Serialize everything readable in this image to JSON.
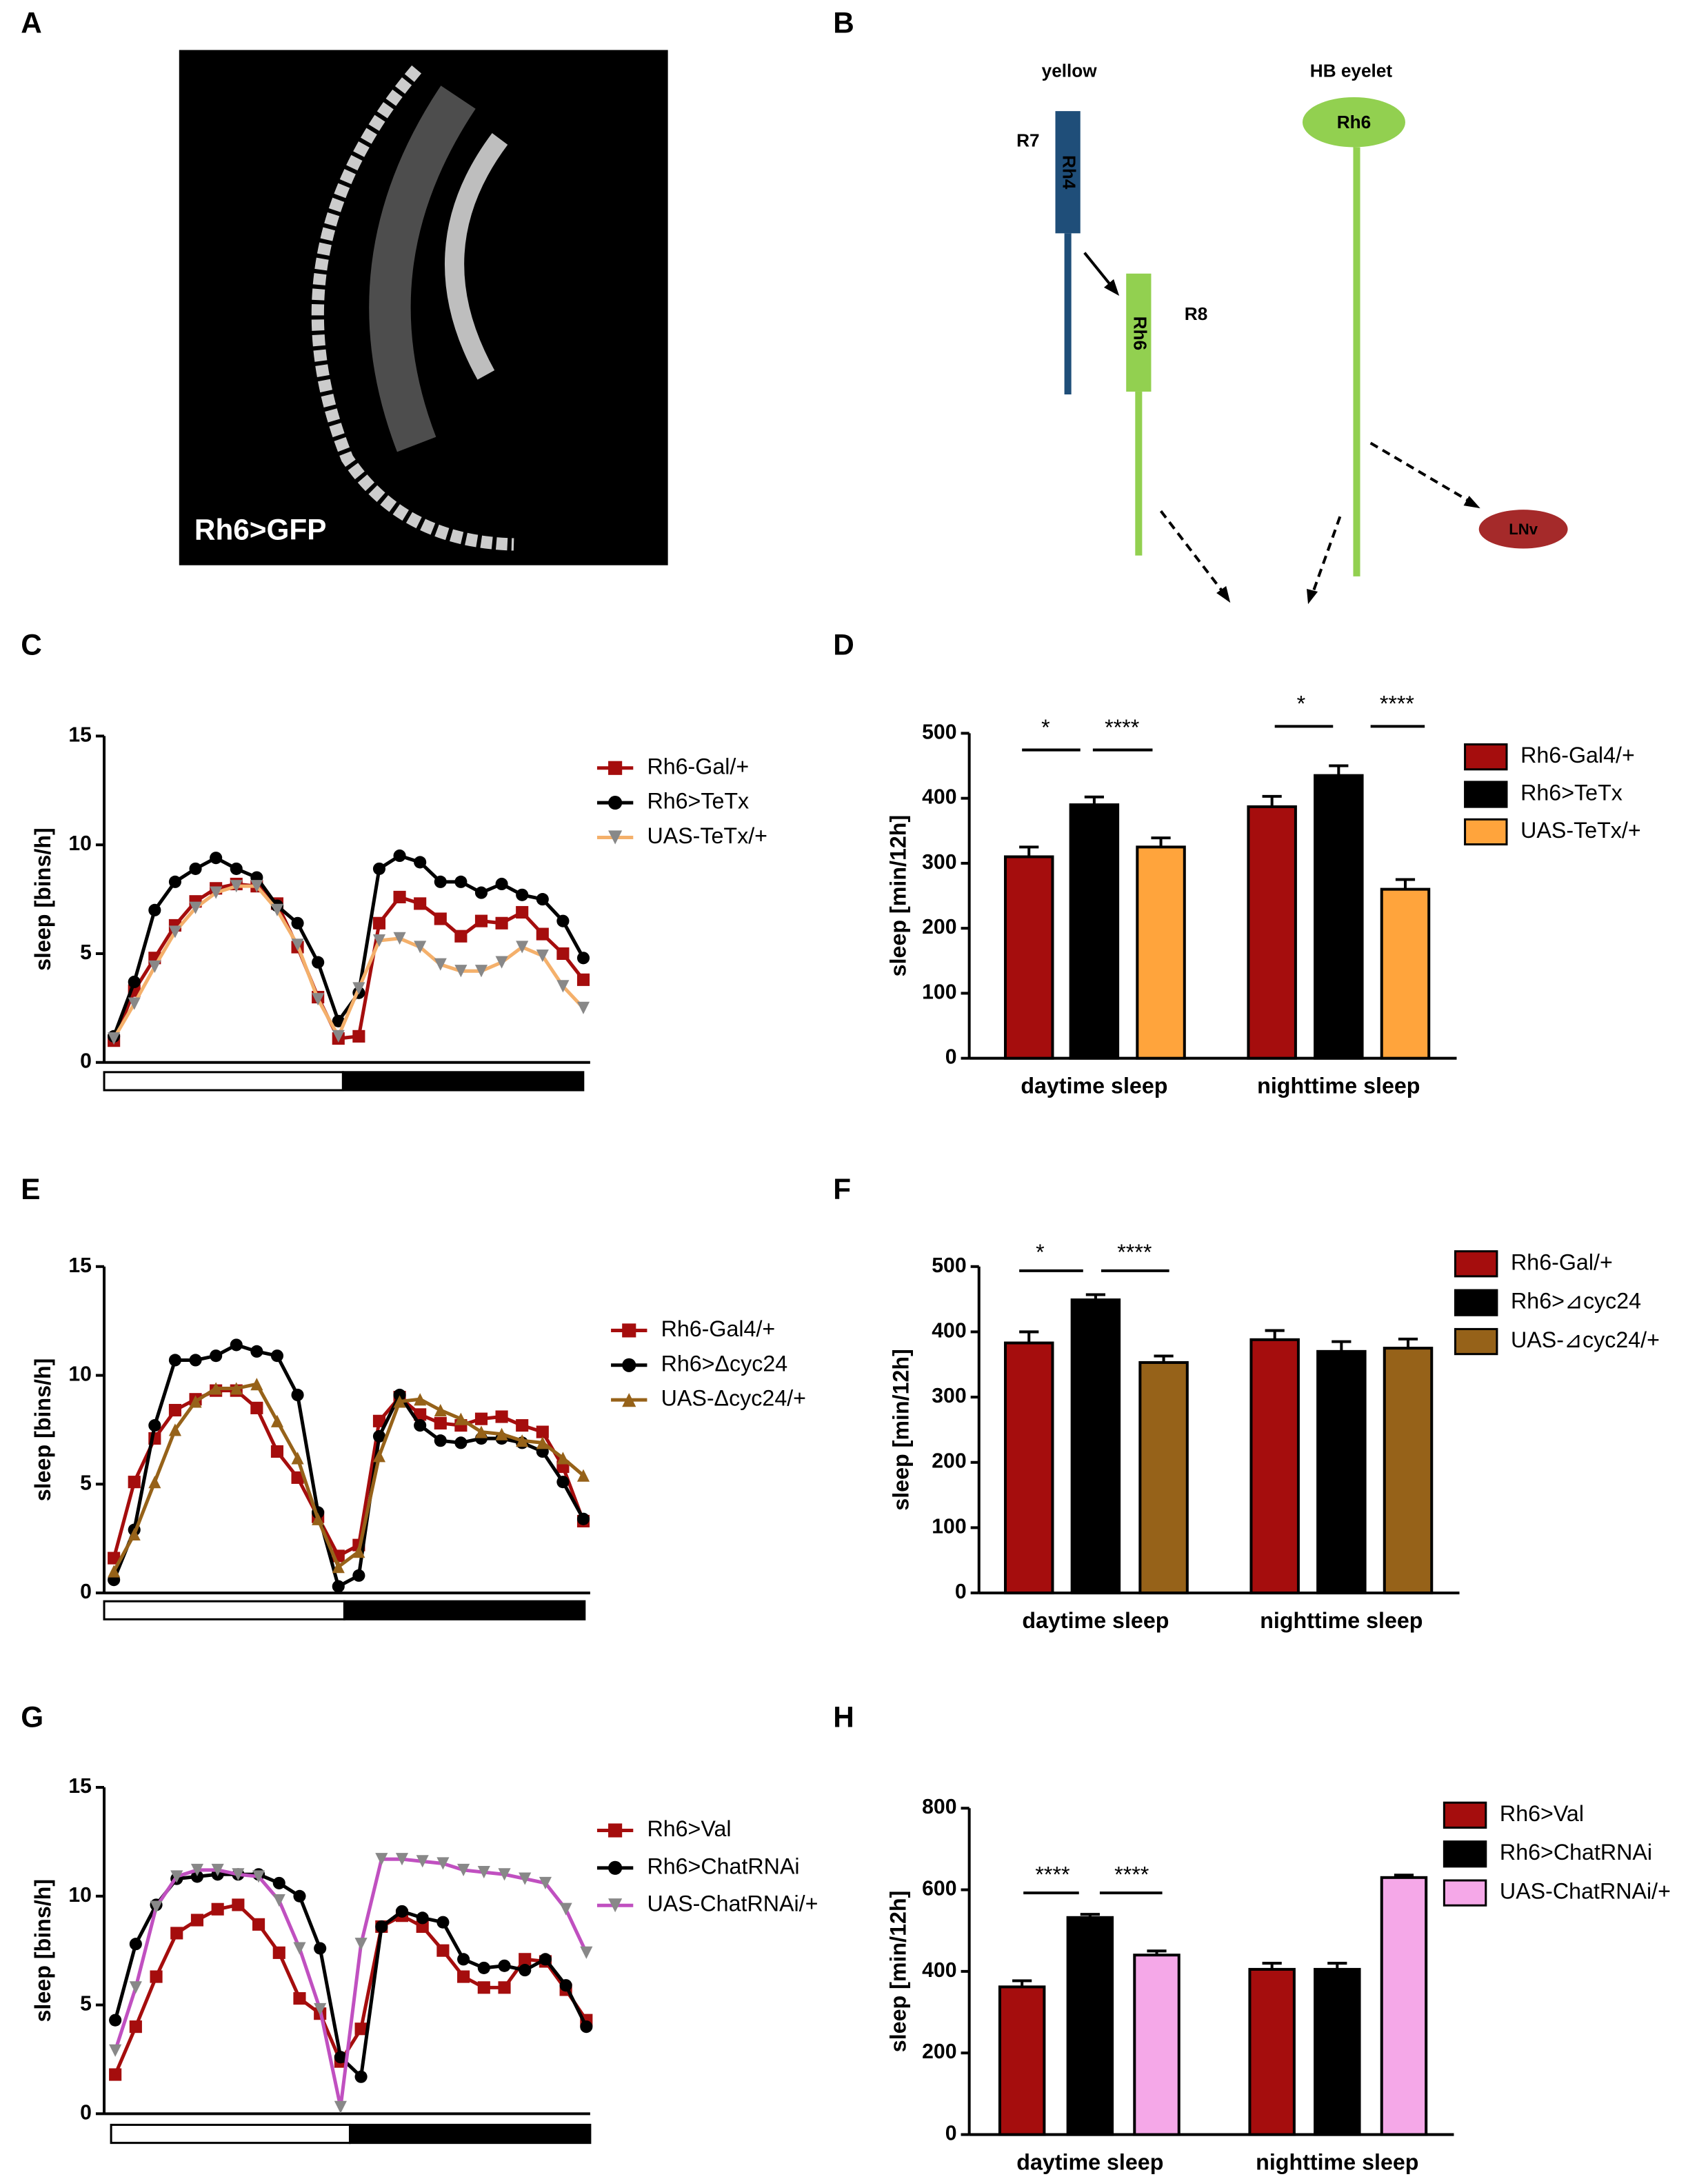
{
  "panel_labels": [
    "A",
    "B",
    "C",
    "D",
    "E",
    "F",
    "G",
    "H"
  ],
  "panel_a": {
    "caption": "Rh6>GFP"
  },
  "panel_b": {
    "columns": [
      "yellow",
      "HB eyelet"
    ],
    "cells": [
      "R7",
      "R8"
    ],
    "rhodopsins": [
      "Rh4",
      "Rh6",
      "Rh6"
    ],
    "target": "LNv"
  },
  "chart_data": [
    {
      "type": "line",
      "ylabel": "sleep [bins/h]",
      "ylim": [
        0,
        15
      ],
      "yticks": [
        0,
        5,
        10,
        15
      ],
      "categories": [
        null,
        null,
        null,
        null,
        null,
        null,
        null,
        null,
        null,
        null,
        null,
        null,
        null,
        null,
        null,
        null,
        null,
        null,
        null,
        null,
        null,
        null,
        null,
        null
      ],
      "series": [
        {
          "name": "Rh6-Gal/+",
          "color": "#a50d0d",
          "marker_color": "#a50d0d",
          "marker": "square",
          "values": [
            1.0,
            3.3,
            4.8,
            6.3,
            7.4,
            8.0,
            8.2,
            8.1,
            7.3,
            5.3,
            3.0,
            1.1,
            1.2,
            6.4,
            7.6,
            7.3,
            6.6,
            5.8,
            6.5,
            6.4,
            6.9,
            5.9,
            5.0,
            3.8
          ]
        },
        {
          "name": "Rh6>TeTx",
          "color": "#000000",
          "marker_color": "#000000",
          "marker": "circle",
          "values": [
            1.2,
            3.7,
            7.0,
            8.3,
            8.9,
            9.4,
            8.9,
            8.5,
            7.2,
            6.4,
            4.6,
            1.9,
            3.2,
            8.9,
            9.5,
            9.2,
            8.3,
            8.3,
            7.8,
            8.2,
            7.7,
            7.5,
            6.5,
            4.8
          ]
        },
        {
          "name": "UAS-TeTx/+",
          "color": "#f4b06b",
          "marker_color": "#888888",
          "marker": "triangle-down",
          "values": [
            1.1,
            2.7,
            4.4,
            6.0,
            7.1,
            7.8,
            8.1,
            8.1,
            7.0,
            5.4,
            2.9,
            1.2,
            3.4,
            5.6,
            5.7,
            5.3,
            4.5,
            4.2,
            4.2,
            4.6,
            5.3,
            4.9,
            3.5,
            2.5
          ]
        }
      ]
    },
    {
      "type": "bar",
      "ylabel": "sleep [min/12h]",
      "ylim": [
        0,
        500
      ],
      "yticks": [
        0,
        100,
        200,
        300,
        400,
        500
      ],
      "categories": [
        "daytime sleep",
        "nighttime sleep"
      ],
      "series": [
        {
          "name": "Rh6-Gal4/+",
          "color": "#a50d0d",
          "values": [
            310,
            387
          ],
          "errors": [
            15,
            16
          ]
        },
        {
          "name": "Rh6>TeTx",
          "color": "#000000",
          "values": [
            390,
            435
          ],
          "errors": [
            12,
            15
          ]
        },
        {
          "name": "UAS-TeTx/+",
          "color": "#ffa43c",
          "values": [
            325,
            260
          ],
          "errors": [
            14,
            15
          ]
        }
      ],
      "annotations": [
        "*",
        "****",
        "*",
        "****"
      ]
    },
    {
      "type": "line",
      "ylabel": "sleep [bins/h]",
      "ylim": [
        0,
        15
      ],
      "yticks": [
        0,
        5,
        10,
        15
      ],
      "categories": [
        null,
        null,
        null,
        null,
        null,
        null,
        null,
        null,
        null,
        null,
        null,
        null,
        null,
        null,
        null,
        null,
        null,
        null,
        null,
        null,
        null,
        null,
        null,
        null
      ],
      "series": [
        {
          "name": "Rh6-Gal4/+",
          "color": "#a50d0d",
          "marker_color": "#a50d0d",
          "marker": "square",
          "values": [
            1.6,
            5.1,
            7.1,
            8.4,
            8.9,
            9.3,
            9.3,
            8.5,
            6.5,
            5.3,
            3.5,
            1.7,
            2.2,
            7.9,
            9.0,
            8.2,
            7.8,
            7.7,
            8.0,
            8.1,
            7.7,
            7.4,
            5.8,
            3.3
          ]
        },
        {
          "name": "Rh6>Δcyc24",
          "color": "#000000",
          "marker_color": "#000000",
          "marker": "circle",
          "values": [
            0.6,
            2.9,
            7.7,
            10.7,
            10.7,
            10.9,
            11.4,
            11.1,
            10.9,
            9.1,
            3.7,
            0.3,
            0.8,
            7.2,
            9.1,
            7.7,
            7.0,
            6.9,
            7.1,
            7.1,
            6.9,
            6.5,
            5.1,
            3.4
          ]
        },
        {
          "name": "UAS-Δcyc24/+",
          "color": "#966219",
          "marker_color": "#966219",
          "marker": "triangle-up",
          "values": [
            1.0,
            2.7,
            5.1,
            7.5,
            8.8,
            9.4,
            9.4,
            9.6,
            7.9,
            6.2,
            3.4,
            1.2,
            1.9,
            6.3,
            8.8,
            8.9,
            8.4,
            8.0,
            7.4,
            7.3,
            7.0,
            6.9,
            6.2,
            5.4
          ]
        }
      ]
    },
    {
      "type": "bar",
      "ylabel": "sleep [min/12h]",
      "ylim": [
        0,
        500
      ],
      "yticks": [
        0,
        100,
        200,
        300,
        400,
        500
      ],
      "categories": [
        "daytime sleep",
        "nighttime sleep"
      ],
      "series": [
        {
          "name": "Rh6-Gal/+",
          "color": "#a50d0d",
          "values": [
            383,
            388
          ],
          "errors": [
            17,
            14
          ]
        },
        {
          "name": "Rh6>⊿cyc24",
          "color": "#000000",
          "values": [
            449,
            370
          ],
          "errors": [
            8,
            15
          ]
        },
        {
          "name": "UAS-⊿cyc24/+",
          "color": "#966219",
          "values": [
            353,
            375
          ],
          "errors": [
            10,
            14
          ]
        }
      ],
      "annotations": [
        "*",
        "****"
      ]
    },
    {
      "type": "line",
      "ylabel": "sleep [bins/h]",
      "ylim": [
        0,
        15
      ],
      "yticks": [
        0,
        5,
        10,
        15
      ],
      "categories": [
        null,
        null,
        null,
        null,
        null,
        null,
        null,
        null,
        null,
        null,
        null,
        null,
        null,
        null,
        null,
        null,
        null,
        null,
        null,
        null,
        null,
        null,
        null,
        null
      ],
      "series": [
        {
          "name": "Rh6>Val",
          "color": "#a50d0d",
          "marker_color": "#a50d0d",
          "marker": "square",
          "values": [
            1.8,
            4.0,
            6.3,
            8.3,
            8.9,
            9.4,
            9.6,
            8.7,
            7.4,
            5.3,
            4.6,
            2.4,
            3.9,
            8.6,
            9.1,
            8.6,
            7.5,
            6.3,
            5.8,
            5.8,
            7.1,
            7.0,
            5.7,
            4.3
          ]
        },
        {
          "name": "Rh6>ChatRNAi",
          "color": "#000000",
          "marker_color": "#000000",
          "marker": "circle",
          "values": [
            4.3,
            7.8,
            9.6,
            10.8,
            10.9,
            11.0,
            11.0,
            11.0,
            10.6,
            10.0,
            7.6,
            2.6,
            1.7,
            8.6,
            9.3,
            9.0,
            8.8,
            7.1,
            6.7,
            6.8,
            6.6,
            7.1,
            5.9,
            4.0
          ]
        },
        {
          "name": "UAS-ChatRNAi/+",
          "color": "#c050c0",
          "marker_color": "#888888",
          "marker": "triangle-down",
          "values": [
            2.9,
            5.8,
            9.5,
            10.9,
            11.2,
            11.2,
            11.0,
            10.9,
            9.8,
            7.6,
            4.8,
            0.3,
            7.8,
            11.7,
            11.7,
            11.6,
            11.5,
            11.2,
            11.1,
            11.0,
            10.8,
            10.6,
            9.4,
            7.4
          ]
        }
      ]
    },
    {
      "type": "bar",
      "ylabel": "sleep [min/12h]",
      "ylim": [
        0,
        800
      ],
      "yticks": [
        0,
        200,
        400,
        600,
        800
      ],
      "categories": [
        "daytime sleep",
        "nighttime sleep"
      ],
      "series": [
        {
          "name": "Rh6>Val",
          "color": "#a50d0d",
          "values": [
            362,
            405
          ],
          "errors": [
            15,
            15
          ]
        },
        {
          "name": "Rh6>ChatRNAi",
          "color": "#000000",
          "values": [
            532,
            405
          ],
          "errors": [
            8,
            15
          ]
        },
        {
          "name": "UAS-ChatRNAi/+",
          "color": "#f5a8e8",
          "values": [
            440,
            630
          ],
          "errors": [
            10,
            6
          ]
        }
      ],
      "annotations": [
        "****",
        "****"
      ]
    }
  ]
}
